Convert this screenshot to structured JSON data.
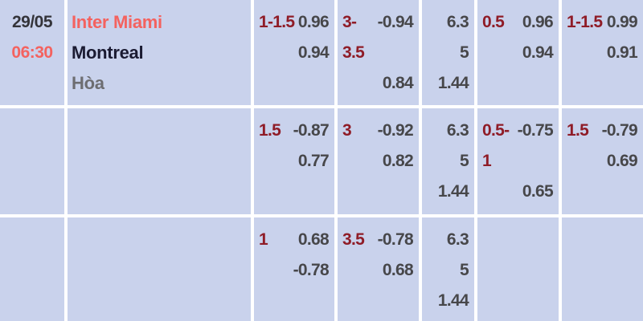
{
  "colors": {
    "background": "#c9d2ec",
    "grid_line": "#ffffff",
    "accent_salmon": "#f4625f",
    "label_maroon": "#8f1c27",
    "value_gray": "#47474a",
    "team_away": "#1b1b32",
    "team_draw": "#6d6d71",
    "date_dark": "#34343a"
  },
  "rows": [
    {
      "date": "29/05",
      "time": "06:30",
      "teams": [
        "Inter Miami",
        "Montreal",
        "Hòa"
      ],
      "cells": [
        {
          "lines": [
            {
              "label": "1-1.5",
              "value": "0.96"
            },
            {
              "label": "",
              "value": "0.94"
            },
            {
              "label": "",
              "value": ""
            }
          ]
        },
        {
          "lines": [
            {
              "label": "3-",
              "value": "-0.94"
            },
            {
              "label": "3.5",
              "value": ""
            },
            {
              "label": "",
              "value": "0.84"
            }
          ]
        },
        {
          "lines": [
            {
              "label": "",
              "value": "6.3"
            },
            {
              "label": "",
              "value": "5"
            },
            {
              "label": "",
              "value": "1.44"
            }
          ]
        },
        {
          "lines": [
            {
              "label": "0.5",
              "value": "0.96"
            },
            {
              "label": "",
              "value": "0.94"
            },
            {
              "label": "",
              "value": ""
            }
          ]
        },
        {
          "lines": [
            {
              "label": "1-1.5",
              "value": "0.99"
            },
            {
              "label": "",
              "value": "0.91"
            },
            {
              "label": "",
              "value": ""
            }
          ]
        }
      ]
    },
    {
      "date": "",
      "time": "",
      "teams": [
        "",
        "",
        ""
      ],
      "cells": [
        {
          "lines": [
            {
              "label": "1.5",
              "value": "-0.87"
            },
            {
              "label": "",
              "value": "0.77"
            },
            {
              "label": "",
              "value": ""
            }
          ]
        },
        {
          "lines": [
            {
              "label": "3",
              "value": "-0.92"
            },
            {
              "label": "",
              "value": "0.82"
            },
            {
              "label": "",
              "value": ""
            }
          ]
        },
        {
          "lines": [
            {
              "label": "",
              "value": "6.3"
            },
            {
              "label": "",
              "value": "5"
            },
            {
              "label": "",
              "value": "1.44"
            }
          ]
        },
        {
          "lines": [
            {
              "label": "0.5-",
              "value": "-0.75"
            },
            {
              "label": "1",
              "value": ""
            },
            {
              "label": "",
              "value": "0.65"
            }
          ]
        },
        {
          "lines": [
            {
              "label": "1.5",
              "value": "-0.79"
            },
            {
              "label": "",
              "value": "0.69"
            },
            {
              "label": "",
              "value": ""
            }
          ]
        }
      ]
    },
    {
      "date": "",
      "time": "",
      "teams": [
        "",
        "",
        ""
      ],
      "cells": [
        {
          "lines": [
            {
              "label": "1",
              "value": "0.68"
            },
            {
              "label": "",
              "value": "-0.78"
            },
            {
              "label": "",
              "value": ""
            }
          ]
        },
        {
          "lines": [
            {
              "label": "3.5",
              "value": "-0.78"
            },
            {
              "label": "",
              "value": "0.68"
            },
            {
              "label": "",
              "value": ""
            }
          ]
        },
        {
          "lines": [
            {
              "label": "",
              "value": "6.3"
            },
            {
              "label": "",
              "value": "5"
            },
            {
              "label": "",
              "value": "1.44"
            }
          ]
        },
        {
          "lines": [
            {
              "label": "",
              "value": ""
            },
            {
              "label": "",
              "value": ""
            },
            {
              "label": "",
              "value": ""
            }
          ]
        },
        {
          "lines": [
            {
              "label": "",
              "value": ""
            },
            {
              "label": "",
              "value": ""
            },
            {
              "label": "",
              "value": ""
            }
          ]
        }
      ]
    }
  ]
}
